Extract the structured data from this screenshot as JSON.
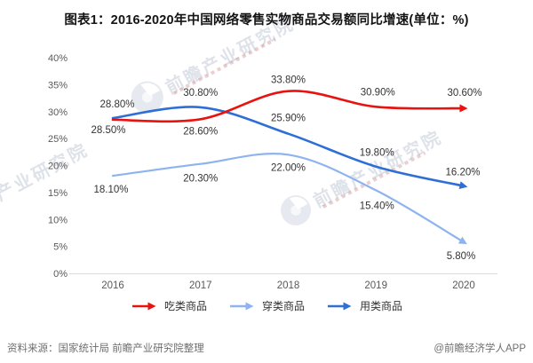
{
  "title": "图表1：2016-2020年中国网络零售实物商品交易额同比增速(单位：%)",
  "chart_data": {
    "type": "line",
    "categories": [
      "2016",
      "2017",
      "2018",
      "2019",
      "2020"
    ],
    "series": [
      {
        "name": "吃类商品",
        "color": "#e8120f",
        "values": [
          28.5,
          28.6,
          33.8,
          30.9,
          30.6
        ]
      },
      {
        "name": "穿类商品",
        "color": "#8db4ee",
        "values": [
          18.1,
          20.3,
          22.0,
          15.4,
          5.8
        ]
      },
      {
        "name": "用类商品",
        "color": "#2e6fd6",
        "values": [
          28.8,
          30.8,
          25.9,
          19.8,
          16.2
        ]
      }
    ],
    "y_ticks": [
      "0%",
      "5%",
      "10%",
      "15%",
      "20%",
      "25%",
      "30%",
      "35%",
      "40%"
    ],
    "ylim": [
      0,
      40
    ],
    "xlabel": "",
    "ylabel": "",
    "grid": false,
    "legend_position": "bottom",
    "line_style": "smooth-with-end-arrow",
    "data_label_format": "0.00%"
  },
  "colors": {
    "axis_line": "#d9d9d9",
    "tick_text": "#595959",
    "data_label_text": "#333333"
  },
  "watermark": {
    "text": "前瞻产业研究院"
  },
  "footer": {
    "source": "资料来源：国家统计局 前瞻产业研究院整理",
    "credit": "@前瞻经济学人APP"
  }
}
